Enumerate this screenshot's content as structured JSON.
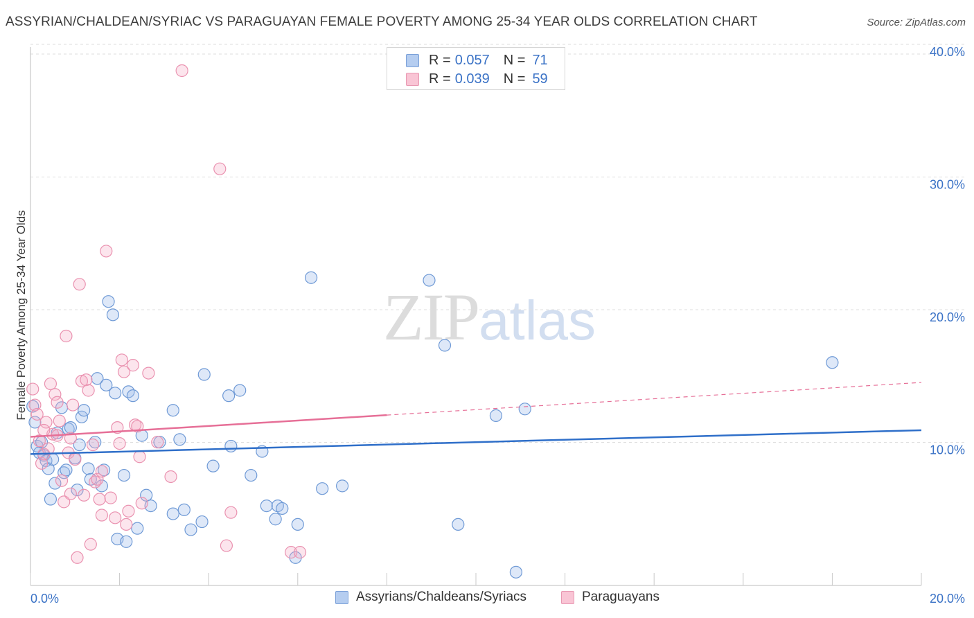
{
  "title": "ASSYRIAN/CHALDEAN/SYRIAC VS PARAGUAYAN FEMALE POVERTY AMONG 25-34 YEAR OLDS CORRELATION CHART",
  "source": "Source: ZipAtlas.com",
  "watermark": {
    "zip": "ZIP",
    "atlas": "atlas"
  },
  "legend": {
    "series": [
      {
        "r_label": "R =",
        "r_value": "0.057",
        "n_label": "N =",
        "n_value": "71",
        "fill": "#b5cdf0",
        "stroke": "#7aa0d8"
      },
      {
        "r_label": "R =",
        "r_value": "0.039",
        "n_label": "N =",
        "n_value": "59",
        "fill": "#f9c5d5",
        "stroke": "#e898b2"
      }
    ]
  },
  "bottom_legend": [
    "Assyrians/Chaldeans/Syriacs",
    "Paraguayans"
  ],
  "colors": {
    "blue_fill": "rgba(160,190,235,0.35)",
    "blue_stroke": "#6f9ad6",
    "blue_line": "#2f6fc9",
    "pink_fill": "rgba(245,170,195,0.30)",
    "pink_stroke": "#ea92b0",
    "pink_line": "#e66f97",
    "tick_text": "#3a72c6",
    "grid": "#dedede"
  },
  "chart_data": {
    "type": "scatter",
    "title": "ASSYRIAN/CHALDEAN/SYRIAC VS PARAGUAYAN FEMALE POVERTY AMONG 25-34 YEAR OLDS CORRELATION CHART",
    "xlabel": "",
    "ylabel": "Female Poverty Among 25-34 Year Olds",
    "xlim": [
      0,
      20
    ],
    "ylim": [
      0,
      40
    ],
    "x_tick_labels": [
      "0.0%",
      "20.0%"
    ],
    "y_ticks": [
      10,
      20,
      30,
      40
    ],
    "y_tick_labels": [
      "10.0%",
      "20.0%",
      "30.0%",
      "40.0%"
    ],
    "series": [
      {
        "name": "Assyrians/Chaldeans/Syriacs",
        "color": "blue",
        "R": 0.057,
        "N": 71,
        "trend": {
          "x0": 0,
          "y0": 9.9,
          "x1": 20,
          "y1": 11.7,
          "solid_until": 20
        },
        "points": [
          [
            0.05,
            13.5
          ],
          [
            0.1,
            12.3
          ],
          [
            0.15,
            10.5
          ],
          [
            0.2,
            10.0
          ],
          [
            0.25,
            10.8
          ],
          [
            0.3,
            9.8
          ],
          [
            0.35,
            9.4
          ],
          [
            0.4,
            8.8
          ],
          [
            0.45,
            6.5
          ],
          [
            0.5,
            9.5
          ],
          [
            0.55,
            7.7
          ],
          [
            0.6,
            11.5
          ],
          [
            0.7,
            13.4
          ],
          [
            0.75,
            8.5
          ],
          [
            0.8,
            8.7
          ],
          [
            0.85,
            11.8
          ],
          [
            0.9,
            11.9
          ],
          [
            1.0,
            9.6
          ],
          [
            1.05,
            7.2
          ],
          [
            1.1,
            10.6
          ],
          [
            1.15,
            12.7
          ],
          [
            1.2,
            13.2
          ],
          [
            1.3,
            8.8
          ],
          [
            1.35,
            8.0
          ],
          [
            1.45,
            10.8
          ],
          [
            1.5,
            15.6
          ],
          [
            1.6,
            7.5
          ],
          [
            1.65,
            8.7
          ],
          [
            1.7,
            15.1
          ],
          [
            1.75,
            21.4
          ],
          [
            1.85,
            20.4
          ],
          [
            1.9,
            14.5
          ],
          [
            1.95,
            3.5
          ],
          [
            2.1,
            8.3
          ],
          [
            2.15,
            3.3
          ],
          [
            2.2,
            14.6
          ],
          [
            2.3,
            14.3
          ],
          [
            2.4,
            4.3
          ],
          [
            2.5,
            11.3
          ],
          [
            2.6,
            6.8
          ],
          [
            2.7,
            6.0
          ],
          [
            2.9,
            10.8
          ],
          [
            3.2,
            13.2
          ],
          [
            3.2,
            5.4
          ],
          [
            3.35,
            11.0
          ],
          [
            3.45,
            5.7
          ],
          [
            3.6,
            4.2
          ],
          [
            3.85,
            4.8
          ],
          [
            3.9,
            15.9
          ],
          [
            4.1,
            9.0
          ],
          [
            4.45,
            14.3
          ],
          [
            4.5,
            10.5
          ],
          [
            4.7,
            14.7
          ],
          [
            4.95,
            8.3
          ],
          [
            5.2,
            10.1
          ],
          [
            5.3,
            6.0
          ],
          [
            5.5,
            5.0
          ],
          [
            5.55,
            6.0
          ],
          [
            5.65,
            5.8
          ],
          [
            5.95,
            2.1
          ],
          [
            6.0,
            4.6
          ],
          [
            6.3,
            23.2
          ],
          [
            6.55,
            7.3
          ],
          [
            7.0,
            7.5
          ],
          [
            8.95,
            23.0
          ],
          [
            9.3,
            18.1
          ],
          [
            9.6,
            4.6
          ],
          [
            10.45,
            12.8
          ],
          [
            10.9,
            1.0
          ],
          [
            11.1,
            13.3
          ],
          [
            18.0,
            16.8
          ]
        ]
      },
      {
        "name": "Paraguayans",
        "color": "pink",
        "R": 0.039,
        "N": 59,
        "trend": {
          "x0": 0,
          "y0": 11.2,
          "x1": 20,
          "y1": 15.3,
          "solid_until": 8.0
        },
        "points": [
          [
            0.05,
            14.8
          ],
          [
            0.1,
            13.6
          ],
          [
            0.15,
            12.9
          ],
          [
            0.2,
            10.9
          ],
          [
            0.25,
            9.2
          ],
          [
            0.3,
            9.9
          ],
          [
            0.35,
            12.3
          ],
          [
            0.4,
            10.3
          ],
          [
            0.45,
            15.2
          ],
          [
            0.5,
            11.4
          ],
          [
            0.55,
            14.4
          ],
          [
            0.6,
            11.3
          ],
          [
            0.65,
            12.4
          ],
          [
            0.7,
            7.9
          ],
          [
            0.75,
            6.3
          ],
          [
            0.8,
            18.8
          ],
          [
            0.85,
            10.0
          ],
          [
            0.9,
            11.1
          ],
          [
            0.95,
            13.6
          ],
          [
            1.0,
            9.5
          ],
          [
            1.05,
            2.1
          ],
          [
            1.1,
            22.7
          ],
          [
            1.15,
            15.4
          ],
          [
            1.2,
            6.8
          ],
          [
            1.25,
            15.5
          ],
          [
            1.3,
            14.7
          ],
          [
            1.35,
            3.1
          ],
          [
            1.4,
            10.6
          ],
          [
            1.45,
            7.8
          ],
          [
            1.5,
            8.0
          ],
          [
            1.55,
            6.5
          ],
          [
            1.6,
            8.6
          ],
          [
            1.7,
            25.2
          ],
          [
            1.8,
            6.6
          ],
          [
            1.9,
            5.1
          ],
          [
            1.95,
            11.9
          ],
          [
            2.0,
            10.7
          ],
          [
            2.05,
            17.0
          ],
          [
            2.1,
            16.1
          ],
          [
            2.15,
            4.6
          ],
          [
            2.2,
            5.6
          ],
          [
            2.3,
            16.6
          ],
          [
            2.35,
            12.1
          ],
          [
            2.45,
            9.7
          ],
          [
            2.5,
            6.2
          ],
          [
            2.65,
            16.0
          ],
          [
            2.85,
            10.8
          ],
          [
            3.15,
            8.2
          ],
          [
            3.4,
            38.8
          ],
          [
            4.25,
            31.4
          ],
          [
            4.4,
            3.0
          ],
          [
            4.5,
            5.5
          ],
          [
            5.85,
            2.5
          ],
          [
            6.05,
            2.5
          ],
          [
            0.3,
            11.7
          ],
          [
            0.6,
            13.8
          ],
          [
            1.6,
            5.3
          ],
          [
            2.4,
            12.0
          ],
          [
            0.9,
            6.9
          ]
        ]
      }
    ]
  }
}
